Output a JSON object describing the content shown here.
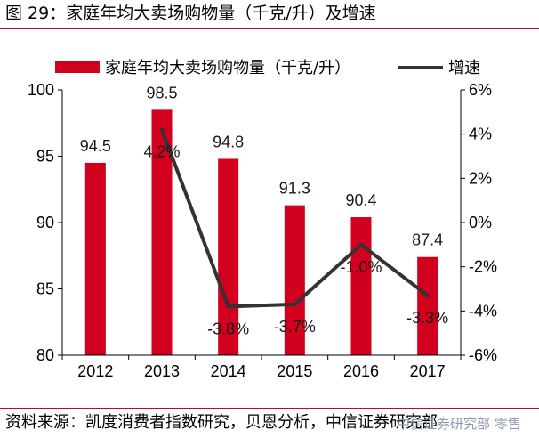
{
  "figure_title": "图 29：家庭年均大卖场购物量（千克/升）及增速",
  "source_note": "资料来源：凯度消费者指数研究，贝恩分析，中信证券研究部",
  "watermark_text": "中信证券研究部 零售",
  "colors": {
    "bar": "#d2001e",
    "line": "#333333",
    "rule": "#b01020"
  },
  "chart_data": {
    "type": "bar",
    "categories": [
      "2012",
      "2013",
      "2014",
      "2015",
      "2016",
      "2017"
    ],
    "series": [
      {
        "name": "家庭年均大卖场购物量（千克/升）",
        "kind": "bar",
        "axis": "left",
        "values": [
          94.5,
          98.5,
          94.8,
          91.3,
          90.4,
          87.4
        ],
        "labels": [
          "94.5",
          "98.5",
          "94.8",
          "91.3",
          "90.4",
          "87.4"
        ]
      },
      {
        "name": "增速",
        "kind": "line",
        "axis": "right",
        "values": [
          null,
          4.2,
          -3.8,
          -3.7,
          -1.0,
          -3.3
        ],
        "labels": [
          "",
          "4.2%",
          "-3.8%",
          "-3.7%",
          "-1.0%",
          "-3.3%"
        ]
      }
    ],
    "y_left": {
      "min": 80,
      "max": 100,
      "ticks": [
        "80",
        "85",
        "90",
        "95",
        "100"
      ]
    },
    "y_right": {
      "min": -6,
      "max": 6,
      "ticks": [
        "-6%",
        "-4%",
        "-2%",
        "0%",
        "2%",
        "4%",
        "6%"
      ]
    },
    "legend": "top",
    "grid": false
  }
}
